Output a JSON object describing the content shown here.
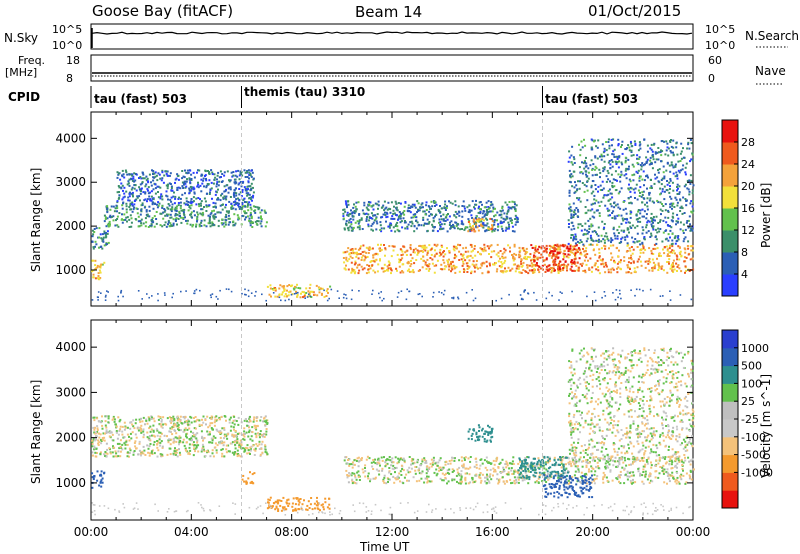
{
  "header": {
    "station": "Goose Bay (fitACF)",
    "beam": "Beam 14",
    "date": "01/Oct/2015"
  },
  "top_panels": {
    "nsky_label": "N.Sky",
    "nsearch_label": "N.Search",
    "noise_ticks": [
      "10^5",
      "10^0"
    ],
    "noise_right_ticks": [
      "10^5",
      "10^0"
    ],
    "freq_label_1": "Freq.",
    "freq_label_2": "[MHz]",
    "freq_ticks": [
      "18",
      "8"
    ],
    "nave_label": "Nave",
    "nave_ticks": [
      "60",
      "0"
    ],
    "cpid_label": "CPID",
    "cpid_segments": [
      {
        "label": "tau (fast) 503",
        "start_h": 0
      },
      {
        "label": "themis (tau) 3310",
        "start_h": 6
      },
      {
        "label": "tau (fast) 503",
        "start_h": 18
      }
    ]
  },
  "colors": {
    "power_scale": [
      "#2a3fff",
      "#2b5fb5",
      "#3b8f6a",
      "#62c14d",
      "#f2e03a",
      "#f4a23a",
      "#ef5a1e",
      "#e8120e"
    ],
    "velocity_scale": [
      "#e8120e",
      "#ef5a1e",
      "#f49a2e",
      "#f4c27a",
      "#c8c8c8",
      "#bfbfbf",
      "#62c14d",
      "#2e8f8f",
      "#2b5fb5",
      "#2a3fcf"
    ],
    "ground_scatter": "#c8c8c8"
  },
  "chart_data": [
    {
      "type": "heatmap",
      "title": "",
      "xlabel": "",
      "ylabel": "Slant Range [km]",
      "xlim": [
        0,
        24
      ],
      "ylim": [
        180,
        4600
      ],
      "yticks": [
        "4000",
        "3000",
        "2000",
        "1000"
      ],
      "yticks_values": [
        4000,
        3000,
        2000,
        1000
      ],
      "colorbar_label": "Power [dB]",
      "colorbar_ticks": [
        "28",
        "24",
        "20",
        "16",
        "12",
        "8",
        "4"
      ],
      "colorbar_tick_values": [
        28,
        24,
        20,
        16,
        12,
        8,
        4
      ],
      "colorbar_range": [
        0,
        32
      ],
      "echo_regions": [
        {
          "t_start_h": 0.0,
          "t_end_h": 0.5,
          "r_min_km": 800,
          "r_max_km": 1300,
          "power_db": 20
        },
        {
          "t_start_h": 0.0,
          "t_end_h": 0.7,
          "r_min_km": 1500,
          "r_max_km": 2000,
          "power_db": 8
        },
        {
          "t_start_h": 0.5,
          "t_end_h": 7.0,
          "r_min_km": 2000,
          "r_max_km": 2500,
          "power_db": 10
        },
        {
          "t_start_h": 1.0,
          "t_end_h": 6.5,
          "r_min_km": 2500,
          "r_max_km": 3300,
          "power_db": 6
        },
        {
          "t_start_h": 7.0,
          "t_end_h": 9.5,
          "r_min_km": 400,
          "r_max_km": 700,
          "power_db": 20
        },
        {
          "t_start_h": 10.0,
          "t_end_h": 24.0,
          "r_min_km": 950,
          "r_max_km": 1600,
          "power_db": 22
        },
        {
          "t_start_h": 17.5,
          "t_end_h": 19.5,
          "r_min_km": 1000,
          "r_max_km": 1600,
          "power_db": 28
        },
        {
          "t_start_h": 10.0,
          "t_end_h": 17.0,
          "r_min_km": 1900,
          "r_max_km": 2600,
          "power_db": 8
        },
        {
          "t_start_h": 15.0,
          "t_end_h": 16.0,
          "r_min_km": 1900,
          "r_max_km": 2200,
          "power_db": 22
        },
        {
          "t_start_h": 19.0,
          "t_end_h": 24.0,
          "r_min_km": 1600,
          "r_max_km": 4000,
          "power_db": 8
        }
      ]
    },
    {
      "type": "heatmap",
      "title": "",
      "xlabel": "Time UT",
      "ylabel": "Slant Range [km]",
      "xlim": [
        0,
        24
      ],
      "ylim": [
        180,
        4600
      ],
      "xticks": [
        "00:00",
        "04:00",
        "08:00",
        "12:00",
        "16:00",
        "20:00",
        "00:00"
      ],
      "xticks_values_h": [
        0,
        4,
        8,
        12,
        16,
        20,
        24
      ],
      "yticks": [
        "4000",
        "3000",
        "2000",
        "1000"
      ],
      "yticks_values": [
        4000,
        3000,
        2000,
        1000
      ],
      "colorbar_label": "Velocity [m s^-1]",
      "colorbar_ticks": [
        "1000",
        "500",
        "100",
        "25",
        "-25",
        "-100",
        "-500",
        "-1000"
      ],
      "colorbar_tick_values": [
        1000,
        500,
        100,
        25,
        -25,
        -100,
        -500,
        -1000
      ],
      "echo_regions": [
        {
          "t_start_h": 0.0,
          "t_end_h": 0.5,
          "r_min_km": 900,
          "r_max_km": 1300,
          "velocity": 600
        },
        {
          "t_start_h": 0.0,
          "t_end_h": 7.0,
          "r_min_km": 1600,
          "r_max_km": 2500,
          "velocity": 0
        },
        {
          "t_start_h": 6.0,
          "t_end_h": 6.5,
          "r_min_km": 1000,
          "r_max_km": 1300,
          "velocity": -300
        },
        {
          "t_start_h": 7.0,
          "t_end_h": 9.5,
          "r_min_km": 400,
          "r_max_km": 700,
          "velocity": -300
        },
        {
          "t_start_h": 10.0,
          "t_end_h": 24.0,
          "r_min_km": 1000,
          "r_max_km": 1600,
          "velocity": 0
        },
        {
          "t_start_h": 17.0,
          "t_end_h": 19.0,
          "r_min_km": 1100,
          "r_max_km": 1600,
          "velocity": 300
        },
        {
          "t_start_h": 18.0,
          "t_end_h": 20.0,
          "r_min_km": 700,
          "r_max_km": 1200,
          "velocity": 800
        },
        {
          "t_start_h": 15.0,
          "t_end_h": 16.0,
          "r_min_km": 1900,
          "r_max_km": 2300,
          "velocity": 200
        },
        {
          "t_start_h": 19.0,
          "t_end_h": 24.0,
          "r_min_km": 1500,
          "r_max_km": 4000,
          "velocity": 0
        }
      ]
    }
  ]
}
